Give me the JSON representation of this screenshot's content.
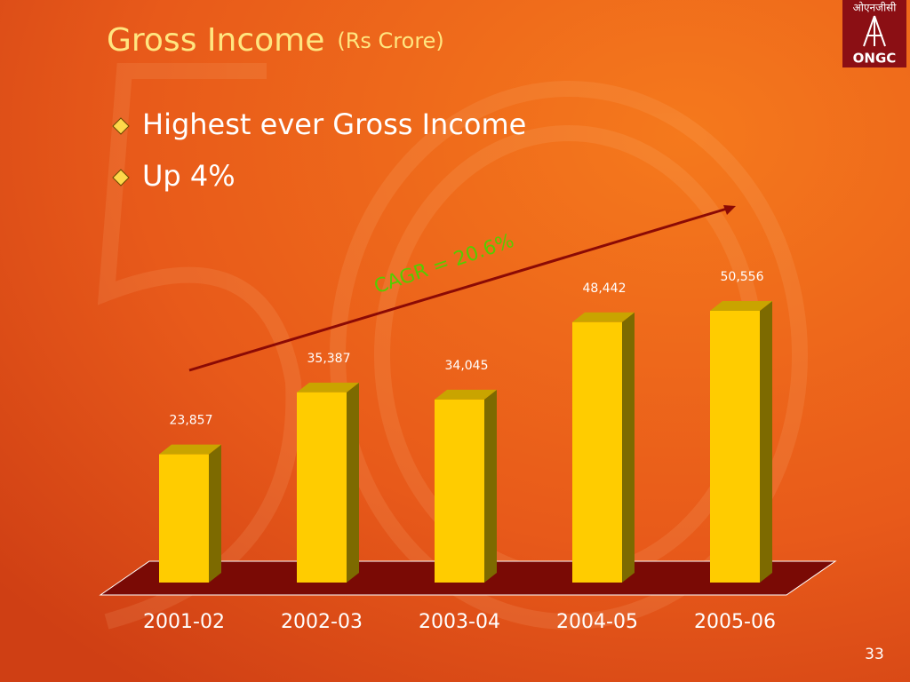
{
  "slide": {
    "logo_text": "ओएनजीसी",
    "logo_name": "ONGC",
    "bullets": [
      "Highest ever Gross Income",
      "Up 4%"
    ],
    "page_number": "33"
  },
  "chart_data": {
    "type": "bar3d",
    "title": "Gross Income",
    "subtitle": "(Rs Crore)",
    "categories": [
      "2001-02",
      "2002-03",
      "2003-04",
      "2004-05",
      "2005-06"
    ],
    "values": [
      23857,
      35387,
      34045,
      48442,
      50556
    ],
    "value_labels": [
      "23,857",
      "35,387",
      "34,045",
      "48,442",
      "50,556"
    ],
    "color": "#ffcc00",
    "annotation": "CAGR = 20.6%"
  }
}
